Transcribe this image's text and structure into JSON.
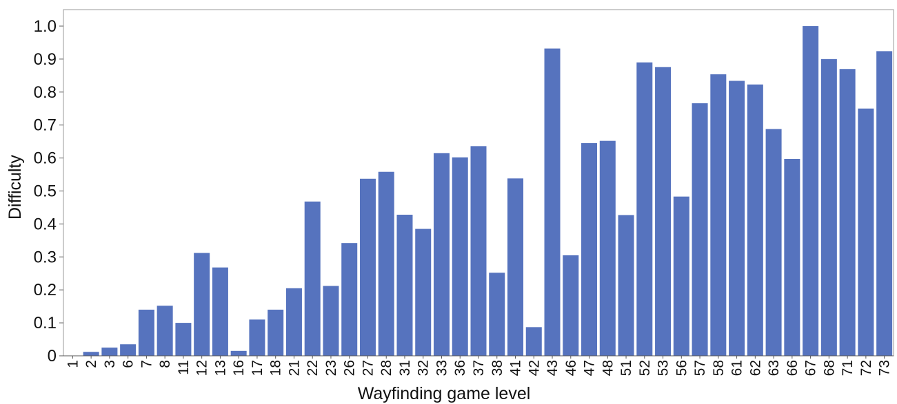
{
  "chart_data": {
    "type": "bar",
    "title": "",
    "xlabel": "Wayfinding game level",
    "ylabel": "Difficulty",
    "ylim": [
      0,
      1.05
    ],
    "yticks": [
      "0",
      "0.1",
      "0.2",
      "0.3",
      "0.4",
      "0.5",
      "0.6",
      "0.7",
      "0.8",
      "0.9",
      "1.0"
    ],
    "grid": false,
    "legend": "none",
    "bar_color": "#5673be",
    "categories": [
      "1",
      "2",
      "3",
      "6",
      "7",
      "8",
      "11",
      "12",
      "13",
      "16",
      "17",
      "18",
      "21",
      "22",
      "23",
      "26",
      "27",
      "28",
      "31",
      "32",
      "33",
      "36",
      "37",
      "38",
      "41",
      "42",
      "43",
      "46",
      "47",
      "48",
      "51",
      "52",
      "53",
      "56",
      "57",
      "58",
      "61",
      "62",
      "63",
      "66",
      "67",
      "68",
      "71",
      "72",
      "73"
    ],
    "values": [
      0,
      0.012,
      0.025,
      0.035,
      0.14,
      0.152,
      0.1,
      0.312,
      0.268,
      0.015,
      0.11,
      0.14,
      0.205,
      0.468,
      0.212,
      0.342,
      0.537,
      0.558,
      0.428,
      0.385,
      0.615,
      0.602,
      0.636,
      0.252,
      0.538,
      0.087,
      0.932,
      0.305,
      0.645,
      0.652,
      0.427,
      0.89,
      0.876,
      0.483,
      0.766,
      0.854,
      0.834,
      0.823,
      0.688,
      0.597,
      1.0,
      0.9,
      0.87,
      0.75,
      0.924
    ]
  }
}
